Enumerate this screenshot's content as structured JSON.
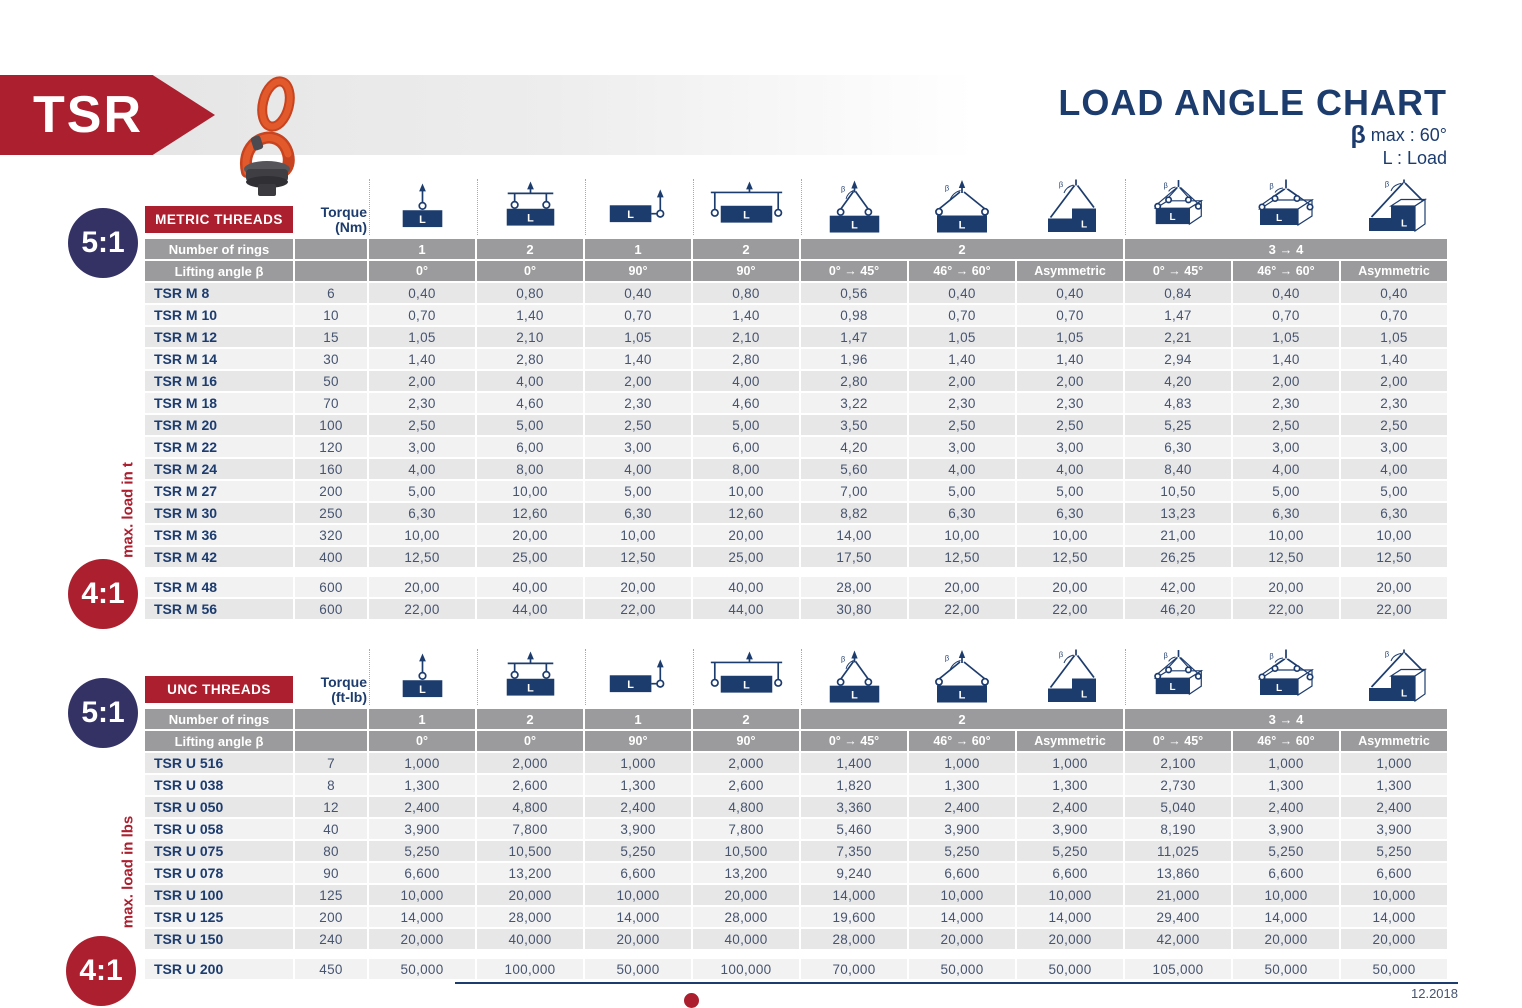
{
  "header": {
    "product_code": "TSR",
    "title": "LOAD ANGLE CHART",
    "beta_symbol": "β",
    "beta_note": " max : 60°",
    "load_note": "L : Load"
  },
  "footer": {
    "date": "12.2018"
  },
  "column_headers": {
    "icons": [
      {
        "icon": "single-ring-vertical-icon",
        "type": "v1",
        "group_start": true
      },
      {
        "icon": "two-rings-spreader-vertical-icon",
        "type": "v2",
        "group_start": true
      },
      {
        "icon": "single-ring-side-pull-icon",
        "type": "s1",
        "group_start": true
      },
      {
        "icon": "two-rings-side-spreader-icon",
        "type": "s2",
        "group_start": true
      },
      {
        "icon": "two-leg-sling-0-45-icon",
        "type": "sling45",
        "group_start": true
      },
      {
        "icon": "two-leg-sling-46-60-icon",
        "type": "sling60",
        "group_start": false
      },
      {
        "icon": "two-leg-asymmetric-icon",
        "type": "asym2",
        "group_start": false
      },
      {
        "icon": "four-leg-sling-0-45-icon",
        "type": "quad45",
        "group_start": true
      },
      {
        "icon": "four-leg-sling-46-60-icon",
        "type": "quad60",
        "group_start": false
      },
      {
        "icon": "four-leg-asymmetric-icon",
        "type": "asymq",
        "group_start": false
      }
    ],
    "ring_groups": [
      {
        "label": "1",
        "span": 1
      },
      {
        "label": "2",
        "span": 1
      },
      {
        "label": "1",
        "span": 1
      },
      {
        "label": "2",
        "span": 1
      },
      {
        "label": "2",
        "span": 3
      },
      {
        "label": "3 → 4",
        "span": 3
      }
    ],
    "angles": [
      "0°",
      "0°",
      "90°",
      "90°",
      "0° → 45°",
      "46° → 60°",
      "Asymmetric",
      "0° → 45°",
      "46° → 60°",
      "Asymmetric"
    ]
  },
  "tables": [
    {
      "badge": "METRIC THREADS",
      "torque_label": "Torque",
      "torque_unit": "(Nm)",
      "rings_label": "Number of rings",
      "angle_label": "Lifting angle β",
      "side_label": "max. load in t",
      "ratio_top": "5:1",
      "ratio_bottom": "4:1",
      "rows": [
        {
          "model": "TSR M 8",
          "torque": "6",
          "values": [
            "0,40",
            "0,80",
            "0,40",
            "0,80",
            "0,56",
            "0,40",
            "0,40",
            "0,84",
            "0,40",
            "0,40"
          ]
        },
        {
          "model": "TSR M 10",
          "torque": "10",
          "values": [
            "0,70",
            "1,40",
            "0,70",
            "1,40",
            "0,98",
            "0,70",
            "0,70",
            "1,47",
            "0,70",
            "0,70"
          ]
        },
        {
          "model": "TSR M 12",
          "torque": "15",
          "values": [
            "1,05",
            "2,10",
            "1,05",
            "2,10",
            "1,47",
            "1,05",
            "1,05",
            "2,21",
            "1,05",
            "1,05"
          ]
        },
        {
          "model": "TSR M 14",
          "torque": "30",
          "values": [
            "1,40",
            "2,80",
            "1,40",
            "2,80",
            "1,96",
            "1,40",
            "1,40",
            "2,94",
            "1,40",
            "1,40"
          ]
        },
        {
          "model": "TSR M 16",
          "torque": "50",
          "values": [
            "2,00",
            "4,00",
            "2,00",
            "4,00",
            "2,80",
            "2,00",
            "2,00",
            "4,20",
            "2,00",
            "2,00"
          ]
        },
        {
          "model": "TSR M 18",
          "torque": "70",
          "values": [
            "2,30",
            "4,60",
            "2,30",
            "4,60",
            "3,22",
            "2,30",
            "2,30",
            "4,83",
            "2,30",
            "2,30"
          ]
        },
        {
          "model": "TSR M 20",
          "torque": "100",
          "values": [
            "2,50",
            "5,00",
            "2,50",
            "5,00",
            "3,50",
            "2,50",
            "2,50",
            "5,25",
            "2,50",
            "2,50"
          ]
        },
        {
          "model": "TSR M 22",
          "torque": "120",
          "values": [
            "3,00",
            "6,00",
            "3,00",
            "6,00",
            "4,20",
            "3,00",
            "3,00",
            "6,30",
            "3,00",
            "3,00"
          ]
        },
        {
          "model": "TSR M 24",
          "torque": "160",
          "values": [
            "4,00",
            "8,00",
            "4,00",
            "8,00",
            "5,60",
            "4,00",
            "4,00",
            "8,40",
            "4,00",
            "4,00"
          ]
        },
        {
          "model": "TSR M 27",
          "torque": "200",
          "values": [
            "5,00",
            "10,00",
            "5,00",
            "10,00",
            "7,00",
            "5,00",
            "5,00",
            "10,50",
            "5,00",
            "5,00"
          ]
        },
        {
          "model": "TSR M 30",
          "torque": "250",
          "values": [
            "6,30",
            "12,60",
            "6,30",
            "12,60",
            "8,82",
            "6,30",
            "6,30",
            "13,23",
            "6,30",
            "6,30"
          ]
        },
        {
          "model": "TSR M 36",
          "torque": "320",
          "values": [
            "10,00",
            "20,00",
            "10,00",
            "20,00",
            "14,00",
            "10,00",
            "10,00",
            "21,00",
            "10,00",
            "10,00"
          ]
        },
        {
          "model": "TSR M 42",
          "torque": "400",
          "values": [
            "12,50",
            "25,00",
            "12,50",
            "25,00",
            "17,50",
            "12,50",
            "12,50",
            "26,25",
            "12,50",
            "12,50"
          ]
        }
      ],
      "rows_41": [
        {
          "model": "TSR M 48",
          "torque": "600",
          "values": [
            "20,00",
            "40,00",
            "20,00",
            "40,00",
            "28,00",
            "20,00",
            "20,00",
            "42,00",
            "20,00",
            "20,00"
          ]
        },
        {
          "model": "TSR M 56",
          "torque": "600",
          "values": [
            "22,00",
            "44,00",
            "22,00",
            "44,00",
            "30,80",
            "22,00",
            "22,00",
            "46,20",
            "22,00",
            "22,00"
          ]
        }
      ]
    },
    {
      "badge": "UNC THREADS",
      "torque_label": "Torque",
      "torque_unit": "(ft-lb)",
      "rings_label": "Number of rings",
      "angle_label": "Lifting angle β",
      "side_label": "max. load in lbs",
      "ratio_top": "5:1",
      "ratio_bottom": "4:1",
      "rows": [
        {
          "model": "TSR U 516",
          "torque": "7",
          "values": [
            "1,000",
            "2,000",
            "1,000",
            "2,000",
            "1,400",
            "1,000",
            "1,000",
            "2,100",
            "1,000",
            "1,000"
          ]
        },
        {
          "model": "TSR U 038",
          "torque": "8",
          "values": [
            "1,300",
            "2,600",
            "1,300",
            "2,600",
            "1,820",
            "1,300",
            "1,300",
            "2,730",
            "1,300",
            "1,300"
          ]
        },
        {
          "model": "TSR U 050",
          "torque": "12",
          "values": [
            "2,400",
            "4,800",
            "2,400",
            "4,800",
            "3,360",
            "2,400",
            "2,400",
            "5,040",
            "2,400",
            "2,400"
          ]
        },
        {
          "model": "TSR U 058",
          "torque": "40",
          "values": [
            "3,900",
            "7,800",
            "3,900",
            "7,800",
            "5,460",
            "3,900",
            "3,900",
            "8,190",
            "3,900",
            "3,900"
          ]
        },
        {
          "model": "TSR U 075",
          "torque": "80",
          "values": [
            "5,250",
            "10,500",
            "5,250",
            "10,500",
            "7,350",
            "5,250",
            "5,250",
            "11,025",
            "5,250",
            "5,250"
          ]
        },
        {
          "model": "TSR U 078",
          "torque": "90",
          "values": [
            "6,600",
            "13,200",
            "6,600",
            "13,200",
            "9,240",
            "6,600",
            "6,600",
            "13,860",
            "6,600",
            "6,600"
          ]
        },
        {
          "model": "TSR U 100",
          "torque": "125",
          "values": [
            "10,000",
            "20,000",
            "10,000",
            "20,000",
            "14,000",
            "10,000",
            "10,000",
            "21,000",
            "10,000",
            "10,000"
          ]
        },
        {
          "model": "TSR U 125",
          "torque": "200",
          "values": [
            "14,000",
            "28,000",
            "14,000",
            "28,000",
            "19,600",
            "14,000",
            "14,000",
            "29,400",
            "14,000",
            "14,000"
          ]
        },
        {
          "model": "TSR U 150",
          "torque": "240",
          "values": [
            "20,000",
            "40,000",
            "20,000",
            "40,000",
            "28,000",
            "20,000",
            "20,000",
            "42,000",
            "20,000",
            "20,000"
          ]
        }
      ],
      "rows_41": [
        {
          "model": "TSR U 200",
          "torque": "450",
          "values": [
            "50,000",
            "100,000",
            "50,000",
            "100,000",
            "70,000",
            "50,000",
            "50,000",
            "105,000",
            "50,000",
            "50,000"
          ]
        }
      ]
    }
  ]
}
